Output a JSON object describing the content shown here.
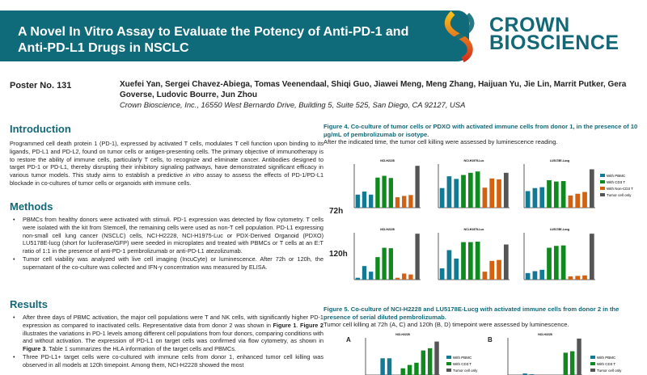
{
  "header": {
    "title": "A Novel In Vitro Assay to Evaluate the Potency of Anti-PD-1 and Anti-PD-L1 Drugs in NSCLC",
    "logo_line1": "CROWN",
    "logo_line2": "BIOSCIENCE"
  },
  "poster_number": "Poster No. 131",
  "authors": "Xuefei Yan, Sergei Chavez-Abiega, Tomas Veenendaal, Shiqi Guo, Jiawei Meng, Meng Zhang, Haijuan Yu, Jie Lin, Marrit Putker, Gera Goverse, Ludovic Bourre, Jun Zhou",
  "affiliation": "Crown Bioscience, Inc., 16550 West Bernardo Drive, Building 5, Suite 525, San Diego, CA 92127, USA",
  "introduction": {
    "heading": "Introduction",
    "text_before": "Programmed cell death protein 1 (PD-1), expressed by activated T cells, modulates T cell function upon binding to its ligands, PD-L1 and PD-L2, found on tumor cells or antigen-presenting cells. The primary objective of immunotherapy is to restore the ability of immune cells, particularly T cells, to recognize and eliminate cancer. Antibodies designed to target PD-1 or PD-L1, thereby disrupting their inhibitory signaling pathways, have demonstrated significant efficacy in various tumor models. This study aims to establish a predictive ",
    "italic": "in vitro",
    "text_after": " assay to assess the effects of PD-1/PD-L1 blockade in co-cultures of tumor cells or organoids with immune cells."
  },
  "methods": {
    "heading": "Methods",
    "items": [
      "PBMCs from healthy donors were activated with stimuli. PD-1 expression was detected by flow cytometry. T cells were isolated with the kit from Stemcell, the remaining cells were used as non-T cell population. PD-L1 expressing non-small cell lung cancer (NSCLC) cells, NCI-H2228, NCI-H1975-Luc or PDX-Derived Organoid (PDXO) LU5178E-lucg (short for luciferase/GFP) were seeded in microplates and treated with PBMCs or T cells at an E:T ratio of 1:1 in the presence of anti-PD-1 pembrolizumab or anti-PD-L1 atezolizumab.",
      "Tumor cell viability was analyzed with live cell imaging (IncuCyte) or luminescence. After 72h or 120h, the supernatant of the co-culture was collected and IFN-γ concentration was measured by ELISA."
    ]
  },
  "results": {
    "heading": "Results",
    "item1": [
      "After three days of PBMC activation, the major cell populations were T and NK cells, with significantly higher PD-1 expression as compared to inactivated cells. Representative data from donor 2 was shown in ",
      "Figure 1",
      ". ",
      "Figure 2",
      " illustrates the variations in PD-1 levels among different cell populations from four donors, comparing conditions with and without activation. The expression of PD-L1 on target cells was confirmed via flow cytometry, as shown in ",
      "Figure 3",
      ". Table 1 summarizes the HLA information of the target cells and PBMCs."
    ],
    "item2": "Three PD-L1+ target cells were co-cultured with immune cells from donor 1, enhanced tumor cell killing was observed in all models at 120h timepoint. Among them, NCI-H2228 showed the most"
  },
  "figure4": {
    "caption_bold": "Figure 4. Co-culture of tumor cells or PDXO with activated immune cells from donor 1, in the presence of 10 µg/mL of pembrolizumab or isotype.",
    "caption": "After the indicated time, the tumor cell killing were assessed by luminescence reading.",
    "row_labels": [
      "72h",
      "120h"
    ],
    "legend": [
      "With PBMC",
      "With CD3 T",
      "With Non-CD3 T",
      "Tumor cell only"
    ]
  },
  "figure5": {
    "caption_bold": "Figure 5. Co-culture of NCI-H2228 and LU5178E-Lucg with activated immune cells from donor 2 in the presence of serial diluted pembrolizumab.",
    "caption": "Tumor cell killing at 72h (A, C) and 120h (B, D) timepoint were assessed by luminescence.",
    "panels": [
      "A",
      "B"
    ],
    "legend": [
      "With PBMC",
      "With CD3 T",
      "Tumor cell only"
    ]
  },
  "colors": {
    "brand": "#0f6a79",
    "pbmc": "#137a95",
    "cd3": "#0f8a1e",
    "noncd3": "#d4610f",
    "tumor": "#555555"
  },
  "chart_data": [
    {
      "type": "bar",
      "title": "NCI-H2228",
      "row": "72h",
      "values": [
        0.3,
        0.37,
        0.3,
        0.69,
        0.73,
        0.68,
        0.24,
        0.27,
        0.29,
        0.96
      ]
    },
    {
      "type": "bar",
      "title": "NCI-H1975-Luc",
      "row": "72h",
      "values": [
        0.45,
        0.72,
        0.66,
        0.75,
        0.8,
        0.83,
        0.46,
        0.67,
        0.65,
        0.8
      ]
    },
    {
      "type": "bar",
      "title": "LU5178E-Lucg",
      "row": "72h",
      "values": [
        0.38,
        0.45,
        0.47,
        0.63,
        0.6,
        0.61,
        0.28,
        0.32,
        0.36,
        0.88
      ]
    },
    {
      "type": "bar",
      "title": "NCI-H2228",
      "row": "120h",
      "values": [
        0.04,
        0.29,
        0.17,
        0.48,
        0.68,
        0.67,
        0.04,
        0.13,
        0.11,
        0.98
      ]
    },
    {
      "type": "bar",
      "title": "NCI-H1975-Luc",
      "row": "120h",
      "values": [
        0.24,
        0.63,
        0.45,
        0.8,
        0.8,
        0.81,
        0.17,
        0.4,
        0.42,
        0.75
      ]
    },
    {
      "type": "bar",
      "title": "LU5178E-Lucg",
      "row": "120h",
      "values": [
        0.14,
        0.18,
        0.21,
        0.68,
        0.72,
        0.73,
        0.07,
        0.08,
        0.09,
        0.98
      ]
    },
    {
      "type": "bar",
      "title": "NCI-H2228",
      "panel": "A",
      "values": [
        0,
        0,
        0.45,
        0.45,
        0,
        0.18,
        0.27,
        0.33,
        0.66,
        0.72,
        0.9
      ]
    },
    {
      "type": "bar",
      "title": "NCI-H2228",
      "panel": "B",
      "values": [
        0,
        0,
        0.04,
        0.02,
        0,
        0,
        0,
        0,
        0.6,
        0.64,
        0.98
      ]
    }
  ]
}
